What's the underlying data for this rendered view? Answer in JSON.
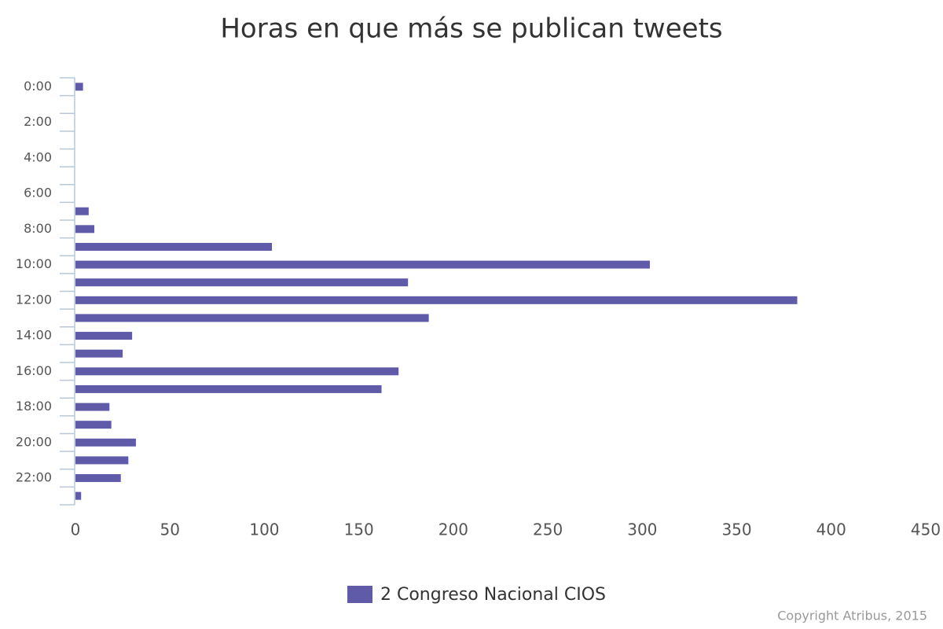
{
  "chart_data": {
    "type": "bar",
    "orientation": "horizontal",
    "title": "Horas en que más se publican tweets",
    "categories": [
      "0:00",
      null,
      "2:00",
      null,
      "4:00",
      null,
      "6:00",
      null,
      "8:00",
      null,
      "10:00",
      null,
      "12:00",
      null,
      "14:00",
      null,
      "16:00",
      null,
      "18:00",
      null,
      "20:00",
      null,
      "22:00",
      null
    ],
    "series": [
      {
        "name": "2 Congreso Nacional CIOS",
        "color": "#5f5ba8",
        "values": [
          4,
          0,
          0,
          0,
          0,
          0,
          0,
          7,
          10,
          104,
          304,
          176,
          382,
          187,
          30,
          25,
          171,
          162,
          18,
          19,
          32,
          28,
          24,
          3
        ]
      }
    ],
    "xlim": [
      0,
      450
    ],
    "xticks": [
      0,
      50,
      100,
      150,
      200,
      250,
      300,
      350,
      400,
      450
    ],
    "grid": false,
    "legend": "bottom",
    "credits": "Copyright Atribus, 2015"
  }
}
